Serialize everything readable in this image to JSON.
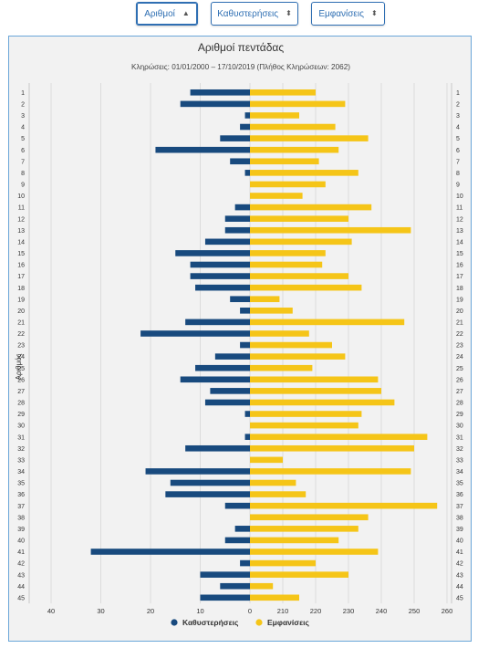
{
  "toolbar": {
    "buttons": [
      {
        "label": "Αριθμοί",
        "caret": "▲"
      },
      {
        "label": "Καθυστερήσεις",
        "caret": "⬍"
      },
      {
        "label": "Εμφανίσεις",
        "caret": "⬍"
      }
    ]
  },
  "colors": {
    "delays": "#184a7e",
    "appearances": "#f5c518",
    "panel_bg": "#f2f2f2",
    "grid": "#dcdcdc",
    "border": "#6aa6d8"
  },
  "chart_data": {
    "type": "bar",
    "orientation": "horizontal",
    "title": "Αριθμοί πεντάδας",
    "subtitle": "Κληρώσεις: 01/01/2000 – 17/10/2019 (Πλήθος Κληρώσεων: 2062)",
    "ylabel": "Αριθμός",
    "left_axis_ticks": [
      "40",
      "30",
      "20",
      "10",
      "0"
    ],
    "right_axis_ticks": [
      "210",
      "220",
      "230",
      "240",
      "250",
      "260"
    ],
    "delays_range": [
      0,
      40
    ],
    "appearances_range": [
      200,
      260
    ],
    "grid": true,
    "legend_position": "bottom",
    "categories": [
      "1",
      "2",
      "3",
      "4",
      "5",
      "6",
      "7",
      "8",
      "9",
      "10",
      "11",
      "12",
      "13",
      "14",
      "15",
      "16",
      "17",
      "18",
      "19",
      "20",
      "21",
      "22",
      "23",
      "24",
      "25",
      "26",
      "27",
      "28",
      "29",
      "30",
      "31",
      "32",
      "33",
      "34",
      "35",
      "36",
      "37",
      "38",
      "39",
      "40",
      "41",
      "42",
      "43",
      "44",
      "45"
    ],
    "series": [
      {
        "name": "Καθυστερήσεις",
        "color": "#184a7e",
        "values": [
          12,
          14,
          1,
          2,
          6,
          19,
          4,
          1,
          0,
          0,
          3,
          5,
          5,
          9,
          15,
          12,
          12,
          11,
          4,
          2,
          13,
          22,
          2,
          7,
          11,
          14,
          8,
          9,
          1,
          0,
          1,
          13,
          0,
          21,
          16,
          17,
          5,
          0,
          3,
          5,
          32,
          2,
          10,
          6,
          10
        ]
      },
      {
        "name": "Εμφανίσεις",
        "color": "#f5c518",
        "values": [
          220,
          229,
          215,
          226,
          236,
          227,
          221,
          233,
          223,
          216,
          237,
          230,
          249,
          231,
          223,
          222,
          230,
          234,
          209,
          213,
          247,
          218,
          225,
          229,
          219,
          239,
          240,
          244,
          234,
          233,
          254,
          250,
          210,
          249,
          214,
          217,
          257,
          236,
          233,
          227,
          239,
          220,
          230,
          207,
          215
        ]
      }
    ]
  }
}
